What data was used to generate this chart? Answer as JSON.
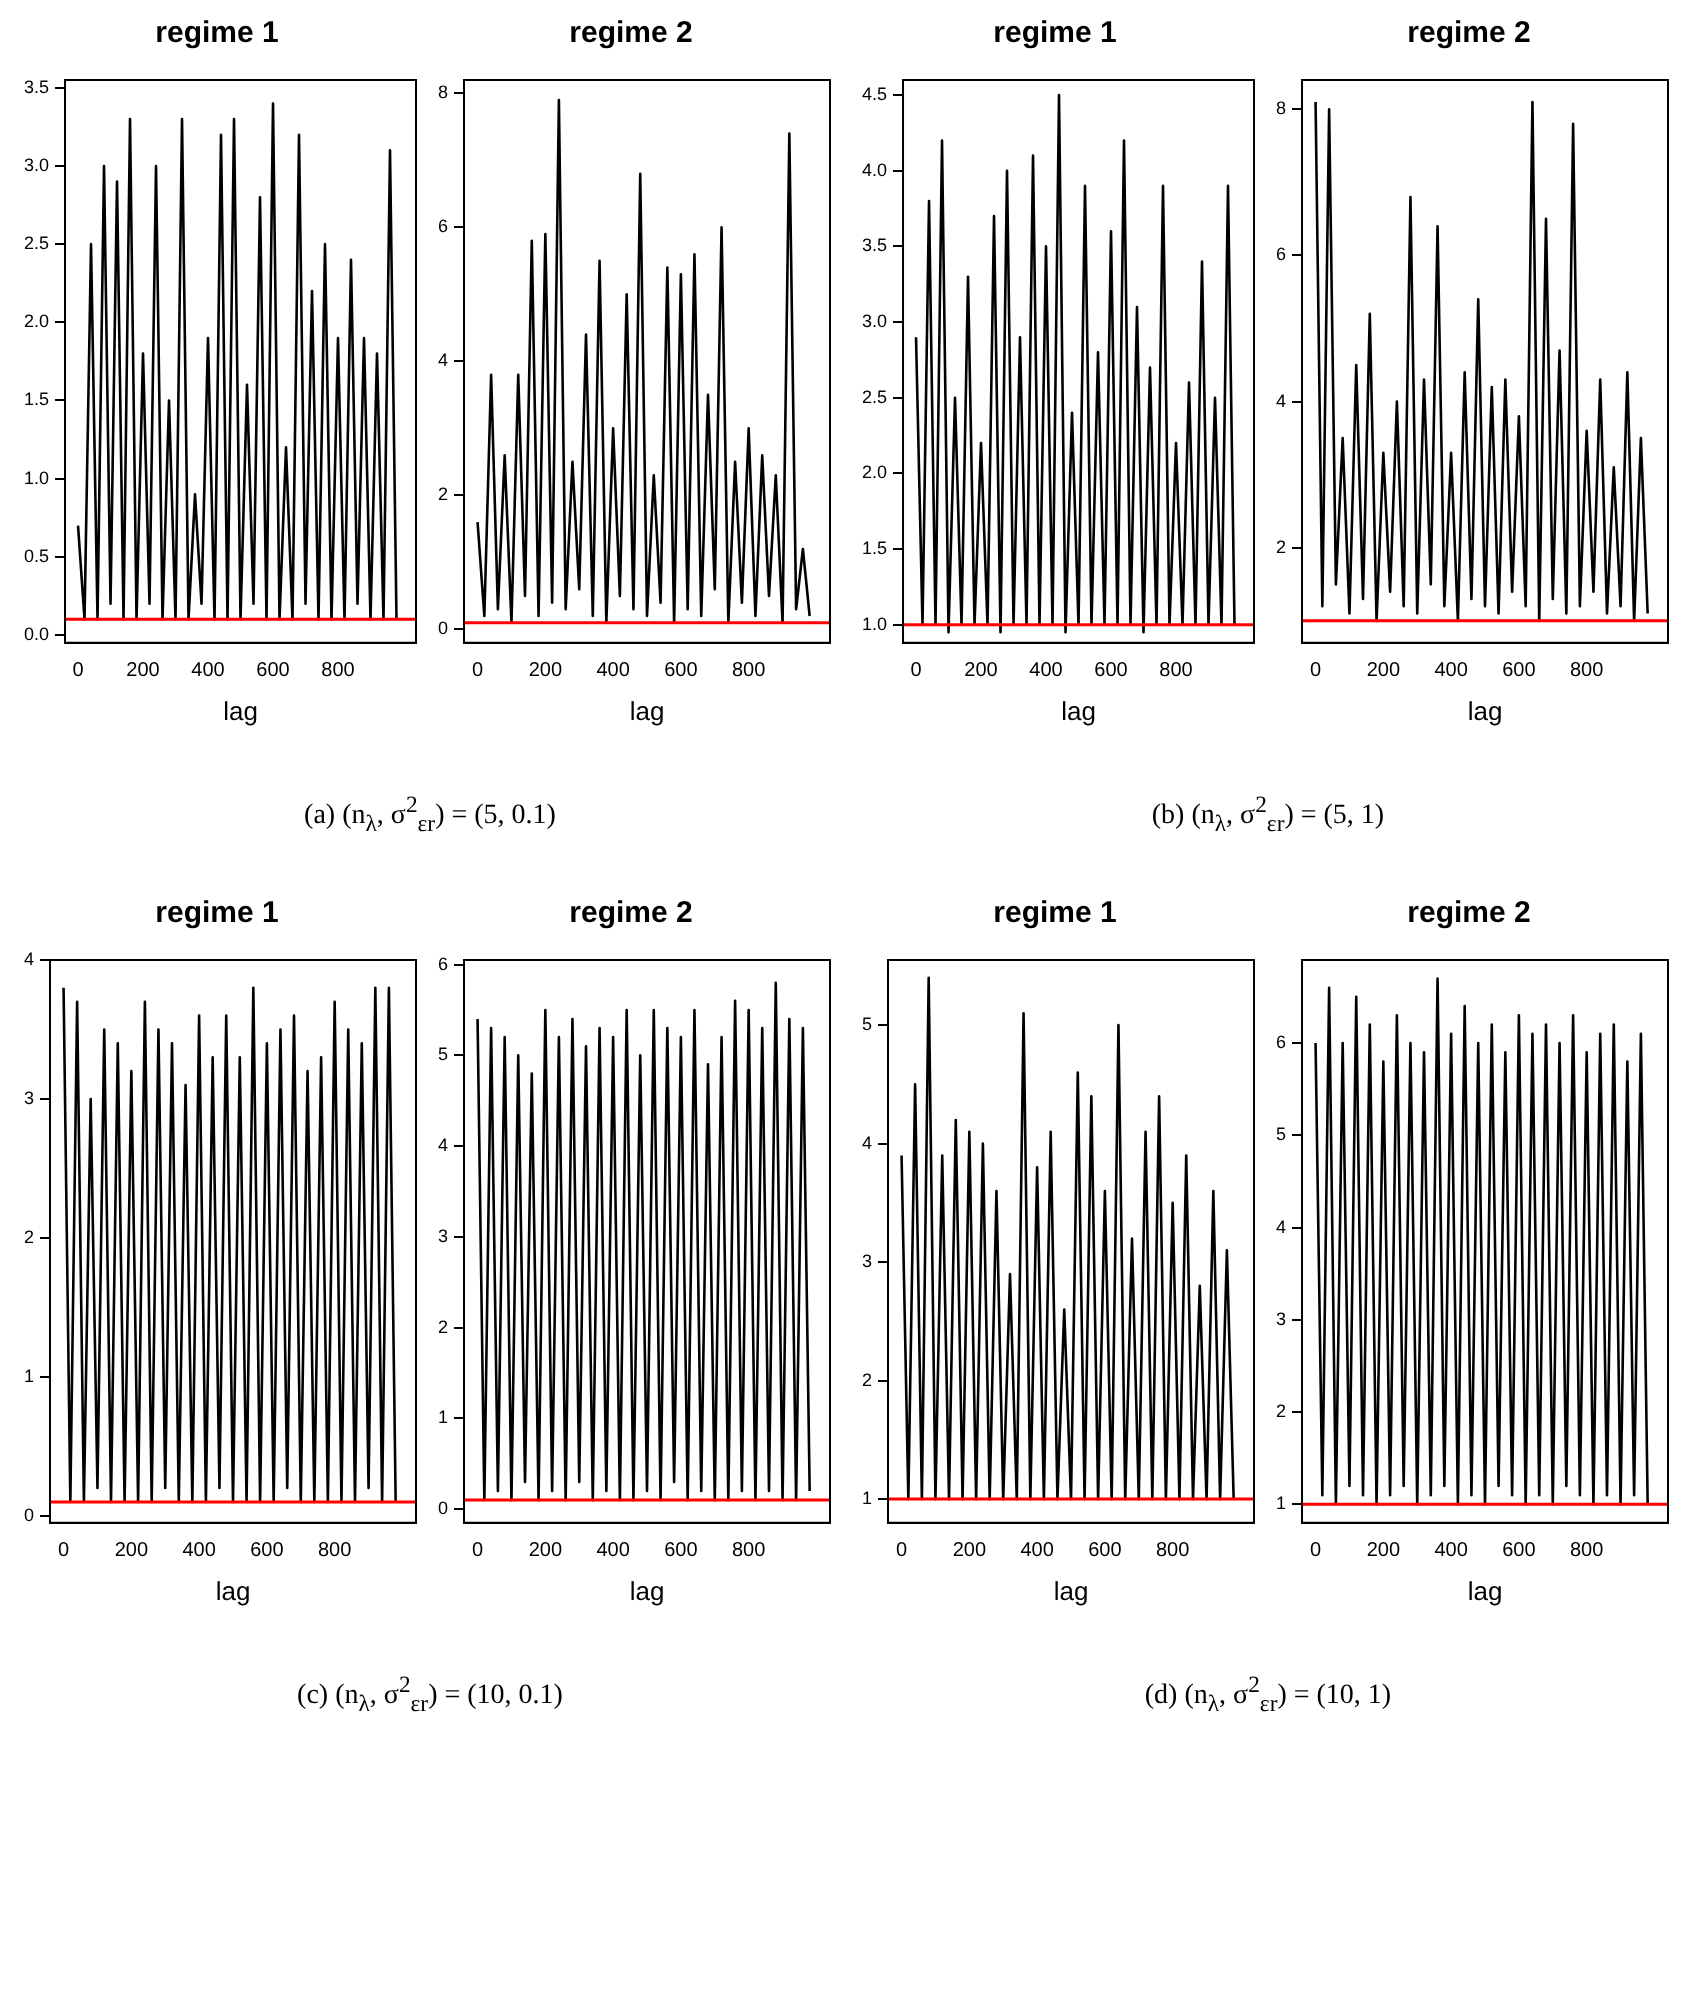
{
  "chart_data": [
    {
      "type": "line",
      "title": "regime 1",
      "xlabel": "lag",
      "xlim": [
        -40,
        1040
      ],
      "xticks": [
        0,
        200,
        400,
        600,
        800
      ],
      "ylim": [
        -0.05,
        3.55
      ],
      "yticks": [
        {
          "value": 0,
          "label": "0.0"
        },
        0.5,
        {
          "value": 1,
          "label": "1.0"
        },
        1.5,
        {
          "value": 2,
          "label": "2.0"
        },
        2.5,
        {
          "value": 3,
          "label": "3.0"
        },
        3.5
      ],
      "ref_lines": [
        {
          "axis": "y",
          "value": 0.1,
          "color": "#ff0000"
        }
      ],
      "annotations": [
        "(a) (n$_{λ}$, σ$^{2}$$_{εr}$) = (5, 0.1)"
      ],
      "x": [
        0,
        20,
        40,
        60,
        80,
        100,
        120,
        140,
        160,
        180,
        200,
        220,
        240,
        260,
        280,
        300,
        320,
        340,
        360,
        380,
        400,
        420,
        440,
        460,
        480,
        500,
        520,
        540,
        560,
        580,
        600,
        620,
        640,
        660,
        680,
        700,
        720,
        740,
        760,
        780,
        800,
        820,
        840,
        860,
        880,
        900,
        920,
        940,
        960,
        980
      ],
      "series": [
        {
          "color": "#000000",
          "values": [
            0.7,
            0.1,
            2.5,
            0.1,
            3.0,
            0.2,
            2.9,
            0.1,
            3.3,
            0.1,
            1.8,
            0.2,
            3.0,
            0.1,
            1.5,
            0.1,
            3.3,
            0.1,
            0.9,
            0.2,
            1.9,
            0.1,
            3.2,
            0.1,
            3.3,
            0.1,
            1.6,
            0.2,
            2.8,
            0.1,
            3.4,
            0.1,
            1.2,
            0.1,
            3.2,
            0.2,
            2.2,
            0.1,
            2.5,
            0.1,
            1.9,
            0.1,
            2.4,
            0.2,
            1.9,
            0.1,
            1.8,
            0.1,
            3.1,
            0.1
          ]
        }
      ]
    },
    {
      "type": "line",
      "title": "regime 2",
      "xlabel": "lag",
      "xlim": [
        -40,
        1040
      ],
      "xticks": [
        0,
        200,
        400,
        600,
        800
      ],
      "ylim": [
        -0.2,
        8.2
      ],
      "yticks": [
        0,
        2,
        4,
        6,
        8
      ],
      "ref_lines": [
        {
          "axis": "y",
          "value": 0.1,
          "color": "#ff0000"
        }
      ],
      "x": [
        0,
        20,
        40,
        60,
        80,
        100,
        120,
        140,
        160,
        180,
        200,
        220,
        240,
        260,
        280,
        300,
        320,
        340,
        360,
        380,
        400,
        420,
        440,
        460,
        480,
        500,
        520,
        540,
        560,
        580,
        600,
        620,
        640,
        660,
        680,
        700,
        720,
        740,
        760,
        780,
        800,
        820,
        840,
        860,
        880,
        900,
        920,
        940,
        960,
        980
      ],
      "series": [
        {
          "color": "#000000",
          "values": [
            1.6,
            0.2,
            3.8,
            0.3,
            2.6,
            0.1,
            3.8,
            0.5,
            5.8,
            0.2,
            5.9,
            0.4,
            7.9,
            0.3,
            2.5,
            0.6,
            4.4,
            0.2,
            5.5,
            0.1,
            3.0,
            0.5,
            5.0,
            0.3,
            6.8,
            0.2,
            2.3,
            0.4,
            5.4,
            0.1,
            5.3,
            0.3,
            5.6,
            0.2,
            3.5,
            0.6,
            6.0,
            0.1,
            2.5,
            0.4,
            3.0,
            0.2,
            2.6,
            0.5,
            2.3,
            0.1,
            7.4,
            0.3,
            1.2,
            0.2
          ]
        }
      ]
    },
    {
      "type": "line",
      "title": "regime 1",
      "xlabel": "lag",
      "xlim": [
        -40,
        1040
      ],
      "xticks": [
        0,
        200,
        400,
        600,
        800
      ],
      "ylim": [
        0.88,
        4.6
      ],
      "yticks": [
        {
          "value": 1,
          "label": "1.0"
        },
        1.5,
        {
          "value": 2,
          "label": "2.0"
        },
        2.5,
        {
          "value": 3,
          "label": "3.0"
        },
        3.5,
        {
          "value": 4,
          "label": "4.0"
        },
        4.5
      ],
      "ref_lines": [
        {
          "axis": "y",
          "value": 1,
          "color": "#ff0000"
        }
      ],
      "annotations": [
        "(b) (n$_{λ}$, σ$^{2}$$_{εr}$) = (5, 1)"
      ],
      "x": [
        0,
        20,
        40,
        60,
        80,
        100,
        120,
        140,
        160,
        180,
        200,
        220,
        240,
        260,
        280,
        300,
        320,
        340,
        360,
        380,
        400,
        420,
        440,
        460,
        480,
        500,
        520,
        540,
        560,
        580,
        600,
        620,
        640,
        660,
        680,
        700,
        720,
        740,
        760,
        780,
        800,
        820,
        840,
        860,
        880,
        900,
        920,
        940,
        960,
        980
      ],
      "series": [
        {
          "color": "#000000",
          "values": [
            2.9,
            1.0,
            3.8,
            1.0,
            4.2,
            0.95,
            2.5,
            1.0,
            3.3,
            1.0,
            2.2,
            1.0,
            3.7,
            0.95,
            4.0,
            1.0,
            2.9,
            1.0,
            4.1,
            1.0,
            3.5,
            1.0,
            4.5,
            0.95,
            2.4,
            1.0,
            3.9,
            1.0,
            2.8,
            1.0,
            3.6,
            1.0,
            4.2,
            1.0,
            3.1,
            0.95,
            2.7,
            1.0,
            3.9,
            1.0,
            2.2,
            1.0,
            2.6,
            1.0,
            3.4,
            1.0,
            2.5,
            1.0,
            3.9,
            1.0
          ]
        }
      ]
    },
    {
      "type": "line",
      "title": "regime 2",
      "xlabel": "lag",
      "xlim": [
        -40,
        1040
      ],
      "xticks": [
        0,
        200,
        400,
        600,
        800
      ],
      "ylim": [
        0.7,
        8.4
      ],
      "yticks": [
        2,
        4,
        6,
        8
      ],
      "ref_lines": [
        {
          "axis": "y",
          "value": 1,
          "color": "#ff0000"
        }
      ],
      "x": [
        0,
        20,
        40,
        60,
        80,
        100,
        120,
        140,
        160,
        180,
        200,
        220,
        240,
        260,
        280,
        300,
        320,
        340,
        360,
        380,
        400,
        420,
        440,
        460,
        480,
        500,
        520,
        540,
        560,
        580,
        600,
        620,
        640,
        660,
        680,
        700,
        720,
        740,
        760,
        780,
        800,
        820,
        840,
        860,
        880,
        900,
        920,
        940,
        960,
        980
      ],
      "series": [
        {
          "color": "#000000",
          "values": [
            8.1,
            1.2,
            8.0,
            1.5,
            3.5,
            1.1,
            4.5,
            1.3,
            5.2,
            1.0,
            3.3,
            1.4,
            4.0,
            1.2,
            6.8,
            1.1,
            4.3,
            1.5,
            6.4,
            1.2,
            3.3,
            1.0,
            4.4,
            1.3,
            5.4,
            1.2,
            4.2,
            1.1,
            4.3,
            1.4,
            3.8,
            1.2,
            8.1,
            1.0,
            6.5,
            1.3,
            4.7,
            1.1,
            7.8,
            1.2,
            3.6,
            1.4,
            4.3,
            1.1,
            3.1,
            1.2,
            4.4,
            1.0,
            3.5,
            1.1
          ]
        }
      ]
    },
    {
      "type": "line",
      "title": "regime 1",
      "xlabel": "lag",
      "xlim": [
        -40,
        1040
      ],
      "xticks": [
        0,
        200,
        400,
        600,
        800
      ],
      "ylim": [
        -0.05,
        4.0
      ],
      "yticks": [
        0,
        1,
        2,
        3,
        4
      ],
      "ref_lines": [
        {
          "axis": "y",
          "value": 0.1,
          "color": "#ff0000"
        }
      ],
      "annotations": [
        "(c) (n$_{λ}$, σ$^{2}$$_{εr}$) = (10, 0.1)"
      ],
      "x": [
        0,
        20,
        40,
        60,
        80,
        100,
        120,
        140,
        160,
        180,
        200,
        220,
        240,
        260,
        280,
        300,
        320,
        340,
        360,
        380,
        400,
        420,
        440,
        460,
        480,
        500,
        520,
        540,
        560,
        580,
        600,
        620,
        640,
        660,
        680,
        700,
        720,
        740,
        760,
        780,
        800,
        820,
        840,
        860,
        880,
        900,
        920,
        940,
        960,
        980
      ],
      "series": [
        {
          "color": "#000000",
          "values": [
            3.8,
            0.1,
            3.7,
            0.1,
            3.0,
            0.2,
            3.5,
            0.1,
            3.4,
            0.1,
            3.2,
            0.1,
            3.7,
            0.1,
            3.5,
            0.2,
            3.4,
            0.1,
            3.1,
            0.1,
            3.6,
            0.1,
            3.3,
            0.2,
            3.6,
            0.1,
            3.3,
            0.1,
            3.8,
            0.1,
            3.4,
            0.1,
            3.5,
            0.2,
            3.6,
            0.1,
            3.2,
            0.1,
            3.3,
            0.1,
            3.7,
            0.1,
            3.5,
            0.1,
            3.4,
            0.2,
            3.8,
            0.1,
            3.8,
            0.1
          ]
        }
      ]
    },
    {
      "type": "line",
      "title": "regime 2",
      "xlabel": "lag",
      "xlim": [
        -40,
        1040
      ],
      "xticks": [
        0,
        200,
        400,
        600,
        800
      ],
      "ylim": [
        -0.15,
        6.05
      ],
      "yticks": [
        0,
        1,
        2,
        3,
        4,
        5,
        6
      ],
      "ref_lines": [
        {
          "axis": "y",
          "value": 0.1,
          "color": "#ff0000"
        }
      ],
      "x": [
        0,
        20,
        40,
        60,
        80,
        100,
        120,
        140,
        160,
        180,
        200,
        220,
        240,
        260,
        280,
        300,
        320,
        340,
        360,
        380,
        400,
        420,
        440,
        460,
        480,
        500,
        520,
        540,
        560,
        580,
        600,
        620,
        640,
        660,
        680,
        700,
        720,
        740,
        760,
        780,
        800,
        820,
        840,
        860,
        880,
        900,
        920,
        940,
        960,
        980
      ],
      "series": [
        {
          "color": "#000000",
          "values": [
            5.4,
            0.1,
            5.3,
            0.2,
            5.2,
            0.1,
            5.0,
            0.3,
            4.8,
            0.1,
            5.5,
            0.2,
            5.2,
            0.1,
            5.4,
            0.3,
            5.1,
            0.1,
            5.3,
            0.2,
            5.2,
            0.1,
            5.5,
            0.1,
            5.0,
            0.2,
            5.5,
            0.1,
            5.3,
            0.3,
            5.2,
            0.1,
            5.5,
            0.2,
            4.9,
            0.1,
            5.2,
            0.1,
            5.6,
            0.2,
            5.5,
            0.1,
            5.3,
            0.2,
            5.8,
            0.1,
            5.4,
            0.1,
            5.3,
            0.2
          ]
        }
      ]
    },
    {
      "type": "line",
      "title": "regime 1",
      "xlabel": "lag",
      "xlim": [
        -40,
        1040
      ],
      "xticks": [
        0,
        200,
        400,
        600,
        800
      ],
      "ylim": [
        0.8,
        5.55
      ],
      "yticks": [
        1,
        2,
        3,
        4,
        5
      ],
      "ref_lines": [
        {
          "axis": "y",
          "value": 1,
          "color": "#ff0000"
        }
      ],
      "annotations": [
        "(d) (n$_{λ}$, σ$^{2}$$_{εr}$) = (10, 1)"
      ],
      "x": [
        0,
        20,
        40,
        60,
        80,
        100,
        120,
        140,
        160,
        180,
        200,
        220,
        240,
        260,
        280,
        300,
        320,
        340,
        360,
        380,
        400,
        420,
        440,
        460,
        480,
        500,
        520,
        540,
        560,
        580,
        600,
        620,
        640,
        660,
        680,
        700,
        720,
        740,
        760,
        780,
        800,
        820,
        840,
        860,
        880,
        900,
        920,
        940,
        960,
        980
      ],
      "series": [
        {
          "color": "#000000",
          "values": [
            3.9,
            1.0,
            4.5,
            1.0,
            5.4,
            1.0,
            3.9,
            1.0,
            4.2,
            1.0,
            4.1,
            1.0,
            4.0,
            1.0,
            3.6,
            1.0,
            2.9,
            1.0,
            5.1,
            1.0,
            3.8,
            1.0,
            4.1,
            1.0,
            2.6,
            1.0,
            4.6,
            1.0,
            4.4,
            1.0,
            3.6,
            1.0,
            5.0,
            1.0,
            3.2,
            1.0,
            4.1,
            1.0,
            4.4,
            1.0,
            3.5,
            1.0,
            3.9,
            1.0,
            2.8,
            1.0,
            3.6,
            1.0,
            3.1,
            1.0
          ]
        }
      ]
    },
    {
      "type": "line",
      "title": "regime 2",
      "xlabel": "lag",
      "xlim": [
        -40,
        1040
      ],
      "xticks": [
        0,
        200,
        400,
        600,
        800
      ],
      "ylim": [
        0.8,
        6.9
      ],
      "yticks": [
        1,
        2,
        3,
        4,
        5,
        6
      ],
      "ref_lines": [
        {
          "axis": "y",
          "value": 1,
          "color": "#ff0000"
        }
      ],
      "x": [
        0,
        20,
        40,
        60,
        80,
        100,
        120,
        140,
        160,
        180,
        200,
        220,
        240,
        260,
        280,
        300,
        320,
        340,
        360,
        380,
        400,
        420,
        440,
        460,
        480,
        500,
        520,
        540,
        560,
        580,
        600,
        620,
        640,
        660,
        680,
        700,
        720,
        740,
        760,
        780,
        800,
        820,
        840,
        860,
        880,
        900,
        920,
        940,
        960,
        980
      ],
      "series": [
        {
          "color": "#000000",
          "values": [
            6.0,
            1.1,
            6.6,
            1.0,
            6.0,
            1.2,
            6.5,
            1.1,
            6.2,
            1.0,
            5.8,
            1.1,
            6.3,
            1.2,
            6.0,
            1.0,
            5.9,
            1.1,
            6.7,
            1.2,
            6.1,
            1.0,
            6.4,
            1.1,
            6.0,
            1.0,
            6.2,
            1.2,
            5.9,
            1.1,
            6.3,
            1.0,
            6.1,
            1.1,
            6.2,
            1.0,
            6.0,
            1.2,
            6.3,
            1.1,
            5.9,
            1.0,
            6.1,
            1.1,
            6.2,
            1.0,
            5.8,
            1.1,
            6.1,
            1.0
          ]
        }
      ]
    }
  ]
}
